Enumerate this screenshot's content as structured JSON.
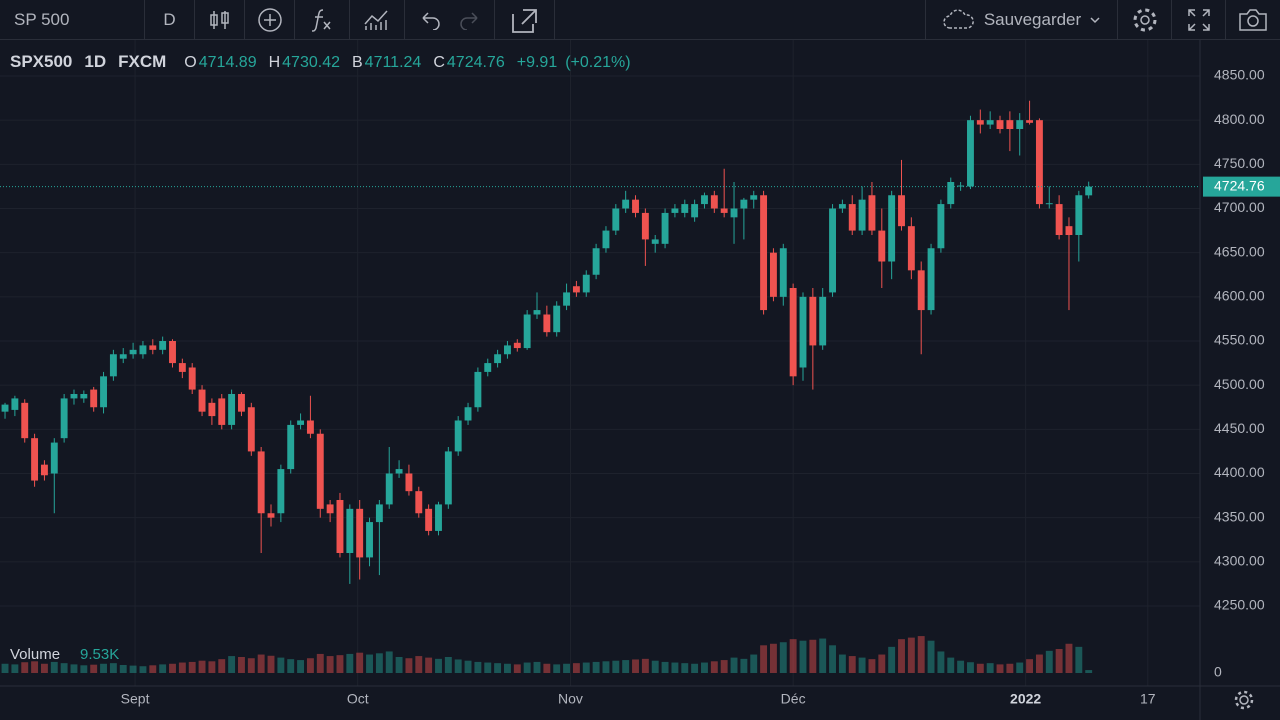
{
  "toolbar": {
    "symbol": "SP 500",
    "interval": "D",
    "save": "Sauvegarder"
  },
  "chart_data": {
    "type": "candlestick",
    "title": "SPX500",
    "interval": "1D",
    "source": "FXCM",
    "ohlc_labels": [
      "O",
      "H",
      "B",
      "C"
    ],
    "change": {
      "value": 9.91,
      "label": "+9.91"
    },
    "change_pct": {
      "value": 0.21,
      "label": "(+0.21%)"
    },
    "up_color": "#26a69a",
    "down_color": "#ef5350",
    "open": [
      4470,
      4472,
      4480,
      4440,
      4410,
      4400,
      4440,
      4485,
      4485,
      4495,
      4475,
      4510,
      4530,
      4535,
      4535,
      4545,
      4540,
      4550,
      4525,
      4520,
      4495,
      4480,
      4485,
      4455,
      4490,
      4475,
      4425,
      4355,
      4355,
      4405,
      4455,
      4460,
      4445,
      4365,
      4370,
      4310,
      4360,
      4305,
      4345,
      4365,
      4400,
      4400,
      4380,
      4360,
      4335,
      4365,
      4425,
      4460,
      4475,
      4515,
      4525,
      4535,
      4548,
      4542,
      4580,
      4580,
      4560,
      4590,
      4612,
      4605,
      4625,
      4655,
      4675,
      4700,
      4710,
      4695,
      4660,
      4660,
      4695,
      4695,
      4690,
      4705,
      4715,
      4700,
      4690,
      4700,
      4710,
      4715,
      4650,
      4600,
      4610,
      4520,
      4600,
      4545,
      4605,
      4700,
      4705,
      4675,
      4715,
      4675,
      4640,
      4715,
      4680,
      4630,
      4585,
      4655,
      4705,
      4725,
      4725,
      4800,
      4795,
      4800,
      4800,
      4790,
      4800,
      4800,
      4705,
      4705,
      4680,
      4670,
      4714.89
    ],
    "high": [
      4480,
      4488,
      4484,
      4445,
      4415,
      4440,
      4490,
      4495,
      4494,
      4498,
      4515,
      4540,
      4542,
      4548,
      4550,
      4552,
      4555,
      4552,
      4530,
      4525,
      4500,
      4485,
      4490,
      4495,
      4492,
      4480,
      4430,
      4365,
      4410,
      4460,
      4468,
      4488,
      4450,
      4370,
      4378,
      4365,
      4370,
      4350,
      4370,
      4430,
      4415,
      4410,
      4385,
      4365,
      4368,
      4430,
      4465,
      4480,
      4520,
      4530,
      4540,
      4550,
      4552,
      4585,
      4605,
      4590,
      4595,
      4615,
      4618,
      4630,
      4660,
      4680,
      4705,
      4720,
      4715,
      4700,
      4670,
      4700,
      4705,
      4710,
      4710,
      4718,
      4720,
      4745,
      4730,
      4712,
      4720,
      4720,
      4655,
      4660,
      4615,
      4605,
      4610,
      4610,
      4705,
      4710,
      4715,
      4725,
      4730,
      4700,
      4720,
      4755,
      4690,
      4640,
      4660,
      4710,
      4735,
      4730,
      4805,
      4812,
      4810,
      4805,
      4810,
      4808,
      4822,
      4802,
      4725,
      4715,
      4690,
      4720,
      4730.42
    ],
    "low": [
      4462,
      4465,
      4435,
      4385,
      4392,
      4355,
      4435,
      4478,
      4480,
      4470,
      4468,
      4505,
      4525,
      4530,
      4530,
      4535,
      4535,
      4520,
      4508,
      4490,
      4465,
      4455,
      4450,
      4450,
      4465,
      4420,
      4310,
      4340,
      4345,
      4400,
      4450,
      4440,
      4350,
      4345,
      4305,
      4275,
      4280,
      4295,
      4285,
      4360,
      4395,
      4375,
      4350,
      4330,
      4330,
      4360,
      4420,
      4455,
      4470,
      4510,
      4520,
      4530,
      4538,
      4540,
      4575,
      4555,
      4555,
      4585,
      4600,
      4600,
      4620,
      4650,
      4670,
      4695,
      4690,
      4635,
      4650,
      4655,
      4690,
      4690,
      4685,
      4700,
      4695,
      4690,
      4660,
      4665,
      4700,
      4580,
      4595,
      4590,
      4500,
      4505,
      4495,
      4540,
      4600,
      4695,
      4670,
      4670,
      4670,
      4610,
      4620,
      4675,
      4620,
      4535,
      4580,
      4650,
      4700,
      4720,
      4722,
      4785,
      4790,
      4785,
      4765,
      4760,
      4795,
      4700,
      4700,
      4665,
      4585,
      4640,
      4711.24
    ],
    "close": [
      4478,
      4485,
      4440,
      4392,
      4398,
      4435,
      4485,
      4490,
      4490,
      4475,
      4510,
      4535,
      4535,
      4540,
      4545,
      4540,
      4550,
      4525,
      4515,
      4495,
      4470,
      4465,
      4455,
      4490,
      4470,
      4425,
      4355,
      4350,
      4405,
      4455,
      4460,
      4445,
      4360,
      4355,
      4310,
      4360,
      4305,
      4345,
      4365,
      4400,
      4405,
      4380,
      4355,
      4335,
      4365,
      4425,
      4460,
      4475,
      4515,
      4525,
      4535,
      4545,
      4542,
      4580,
      4585,
      4560,
      4590,
      4605,
      4605,
      4625,
      4655,
      4675,
      4700,
      4710,
      4695,
      4665,
      4665,
      4695,
      4700,
      4705,
      4705,
      4715,
      4700,
      4695,
      4700,
      4710,
      4715,
      4585,
      4600,
      4655,
      4510,
      4600,
      4545,
      4600,
      4700,
      4705,
      4675,
      4710,
      4675,
      4640,
      4715,
      4680,
      4630,
      4585,
      4655,
      4705,
      4730,
      4726,
      4800,
      4795,
      4800,
      4790,
      4790,
      4800,
      4797,
      4705,
      4706,
      4670,
      4670,
      4715,
      4724.76
    ],
    "volume": {
      "name": "Volume",
      "value_label": "9.53K",
      "up_color": "rgba(38,166,154,0.45)",
      "down_color": "rgba(239,83,80,0.45)",
      "values": [
        30000,
        28000,
        35000,
        38000,
        30000,
        36000,
        32000,
        28000,
        25000,
        27000,
        30000,
        32000,
        26000,
        24000,
        22000,
        25000,
        28000,
        30000,
        34000,
        36000,
        40000,
        38000,
        45000,
        55000,
        52000,
        48000,
        60000,
        56000,
        50000,
        45000,
        42000,
        48000,
        62000,
        55000,
        58000,
        62000,
        66000,
        60000,
        64000,
        70000,
        52000,
        48000,
        55000,
        50000,
        46000,
        52000,
        44000,
        40000,
        36000,
        34000,
        32000,
        30000,
        28000,
        34000,
        36000,
        30000,
        28000,
        30000,
        32000,
        34000,
        36000,
        38000,
        40000,
        42000,
        44000,
        46000,
        40000,
        36000,
        34000,
        32000,
        30000,
        34000,
        38000,
        42000,
        50000,
        46000,
        60000,
        90000,
        95000,
        100000,
        110000,
        105000,
        108000,
        112000,
        90000,
        60000,
        55000,
        50000,
        45000,
        60000,
        85000,
        110000,
        115000,
        120000,
        105000,
        70000,
        50000,
        40000,
        35000,
        30000,
        32000,
        28000,
        30000,
        34000,
        45000,
        60000,
        72000,
        78000,
        95000,
        85000,
        9530
      ],
      "vlim": [
        0,
        130000
      ],
      "vticks": [
        0
      ]
    },
    "xlim": [
      -0.51,
      121.3
    ],
    "xticks": [
      {
        "value": 13.2,
        "label": "Sept"
      },
      {
        "value": 35.8,
        "label": "Oct"
      },
      {
        "value": 57.4,
        "label": "Nov"
      },
      {
        "value": 80.0,
        "label": "Déc"
      },
      {
        "value": 103.6,
        "label": "2022"
      },
      {
        "value": 116.0,
        "label": "17"
      }
    ],
    "ylim": [
      4250,
      4850
    ],
    "yticks": [
      {
        "value": 4250,
        "label": "4250.00"
      },
      {
        "value": 4300,
        "label": "4300.00"
      },
      {
        "value": 4350,
        "label": "4350.00"
      },
      {
        "value": 4400,
        "label": "4400.00"
      },
      {
        "value": 4450,
        "label": "4450.00"
      },
      {
        "value": 4500,
        "label": "4500.00"
      },
      {
        "value": 4550,
        "label": "4550.00"
      },
      {
        "value": 4600,
        "label": "4600.00"
      },
      {
        "value": 4650,
        "label": "4650.00"
      },
      {
        "value": 4700,
        "label": "4700.00"
      },
      {
        "value": 4750,
        "label": "4750.00"
      },
      {
        "value": 4800,
        "label": "4800.00"
      },
      {
        "value": 4850,
        "label": "4850.00"
      }
    ],
    "grid": true
  }
}
